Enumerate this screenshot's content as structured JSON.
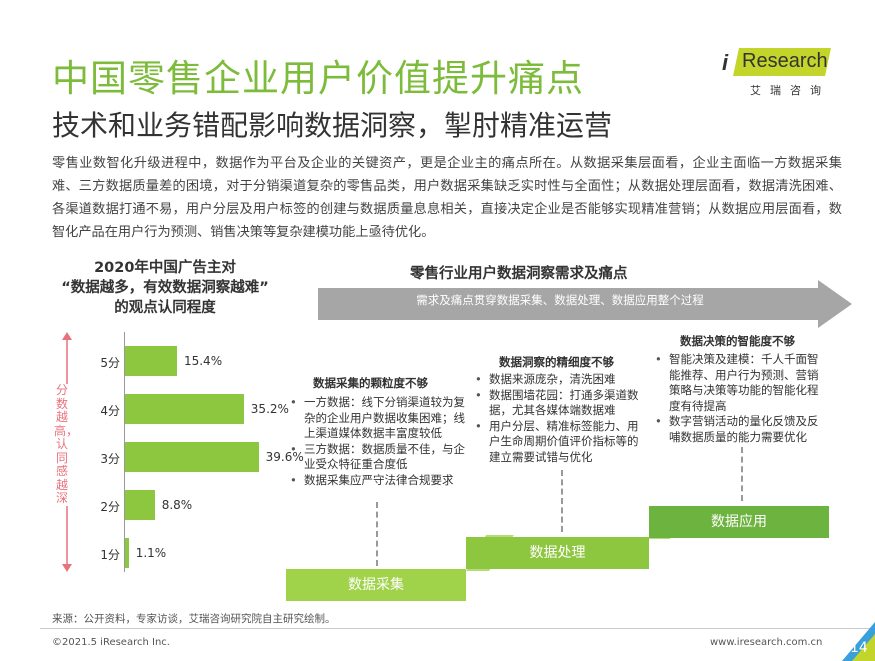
{
  "header": {
    "title": "中国零售企业用户价值提升痛点",
    "subtitle": "技术和业务错配影响数据洞察，掣肘精准运营"
  },
  "logo": {
    "i": "i",
    "text": "Research",
    "cn": "艾瑞咨询"
  },
  "intro": "零售业数智化升级进程中，数据作为平台及企业的关键资产，更是企业主的痛点所在。从数据采集层面看，企业主面临一方数据采集难、三方数据质量差的困境，对于分销渠道复杂的零售品类，用户数据采集缺乏实时性与全面性；从数据处理层面看，数据清洗困难、各渠道数据打通不易，用户分层及用户标签的创建与数据质量息息相关，直接决定企业是否能够实现精准营销；从数据应用层面看，数智化产品在用户行为预测、销售决策等复杂建模功能上亟待优化。",
  "left_chart": {
    "title_lines": [
      "2020年中国广告主对",
      "“数据越多，有效数据洞察越难”",
      "的观点认同程度"
    ],
    "axis_label": "分数越高，认同感越深"
  },
  "chart_data": {
    "type": "bar",
    "orientation": "horizontal",
    "categories": [
      "5分",
      "4分",
      "3分",
      "2分",
      "1分"
    ],
    "values": [
      15.4,
      35.2,
      39.6,
      8.8,
      1.1
    ],
    "value_labels": [
      "15.4%",
      "35.2%",
      "39.6%",
      "8.8%",
      "1.1%"
    ],
    "unit": "%",
    "title": "2020年中国广告主对“数据越多，有效数据洞察越难”的观点认同程度",
    "color": "#8dc63f"
  },
  "right_panel": {
    "title": "零售行业用户数据洞察需求及痛点",
    "arrow_text": "需求及痛点贯穿数据采集、数据处理、数据应用整个过程",
    "columns": [
      {
        "heading": "数据采集的颗粒度不够",
        "step": "数据采集",
        "bullets": [
          "一方数据：线下分销渠道较为复杂的企业用户数据收集困难；线上渠道媒体数据丰富度较低",
          "三方数据：数据质量不佳，与企业受众特征重合度低",
          "数据采集应严守法律合规要求"
        ]
      },
      {
        "heading": "数据洞察的精细度不够",
        "step": "数据处理",
        "bullets": [
          "数据来源庞杂，清洗困难",
          "数据围墙花园：打通多渠道数据，尤其各媒体端数据难",
          "用户分层、精准标签能力、用户生命周期价值评价指标等的建立需要试错与优化"
        ]
      },
      {
        "heading": "数据决策的智能度不够",
        "step": "数据应用",
        "bullets": [
          "智能决策及建模：千人千面智能推荐、用户行为预测、营销策略与决策等功能的智能化程度有待提高",
          "数字营销活动的量化反馈及反哺数据质量的能力需要优化"
        ]
      }
    ]
  },
  "footer": {
    "source": "来源：公开资料，专家访谈，艾瑞咨询研究院自主研究绘制。",
    "copyright": "©2021.5 iResearch Inc.",
    "url": "www.iresearch.com.cn",
    "page": "14"
  },
  "colors": {
    "title_green": "#7dbb3a",
    "bar_green": "#8dc63f",
    "step_green_light": "#a0d24a",
    "step_green_mid": "#8dc63f",
    "step_green_dark": "#6db33f",
    "logo_yellow": "#c3d52a",
    "axis_pink": "#e8727c",
    "arrow_gray": "#a6a6a6",
    "page_corner_blue": "#3aa0dc"
  }
}
